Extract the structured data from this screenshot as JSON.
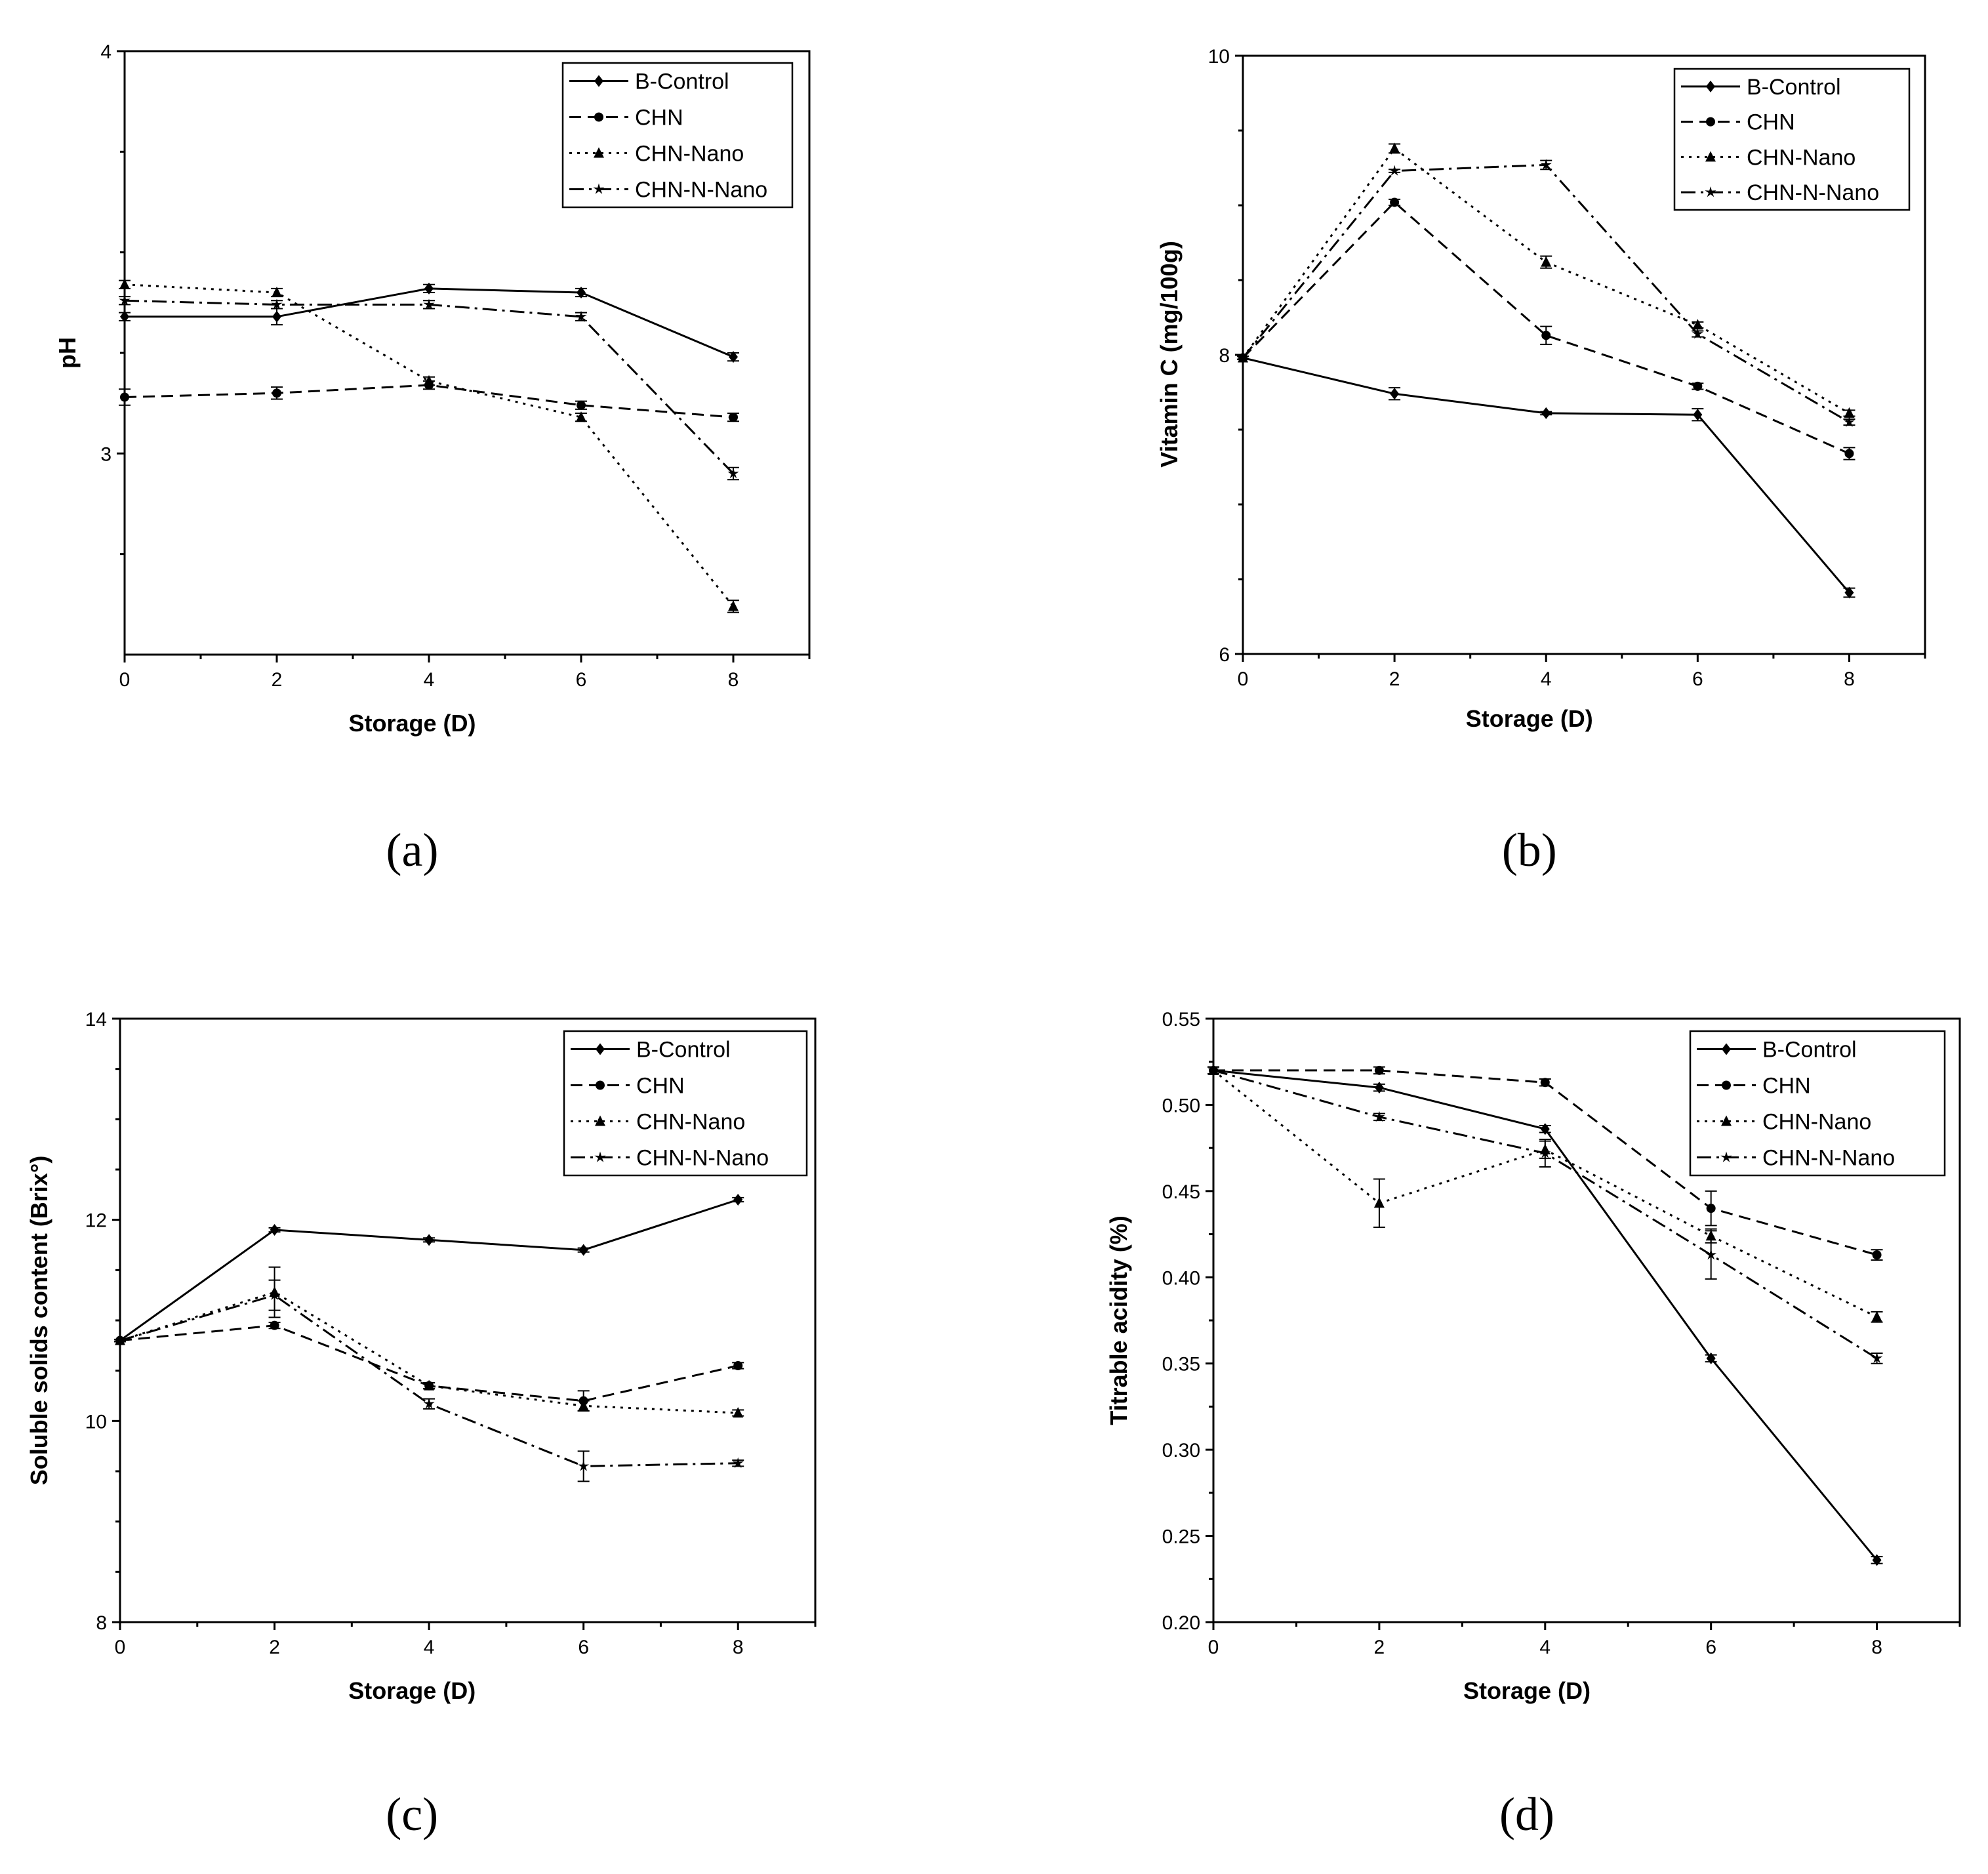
{
  "chart_data": [
    {
      "type": "line",
      "panel_label": "(a)",
      "title": "",
      "xlabel": "Storage (D)",
      "ylabel": "pH",
      "x": [
        0,
        2,
        4,
        6,
        8
      ],
      "xlim": [
        0,
        9
      ],
      "ylim": [
        2.5,
        4
      ],
      "xticks": [
        0,
        2,
        4,
        6,
        8
      ],
      "yticks": [
        3,
        4
      ],
      "legend_position": "top-right",
      "series": [
        {
          "name": "B-Control",
          "style": "solid",
          "marker": "diamond",
          "values": [
            3.34,
            3.34,
            3.41,
            3.4,
            3.24
          ],
          "errors": [
            0.01,
            0.02,
            0.01,
            0.01,
            0.01
          ]
        },
        {
          "name": "CHN",
          "style": "dashed",
          "marker": "circle",
          "values": [
            3.14,
            3.15,
            3.17,
            3.12,
            3.09
          ],
          "errors": [
            0.02,
            0.015,
            0.01,
            0.01,
            0.01
          ]
        },
        {
          "name": "CHN-Nano",
          "style": "dotted",
          "marker": "triangle",
          "values": [
            3.42,
            3.4,
            3.18,
            3.09,
            2.62
          ],
          "errors": [
            0.01,
            0.01,
            0.01,
            0.01,
            0.015
          ]
        },
        {
          "name": "CHN-N-Nano",
          "style": "dashdot",
          "marker": "star",
          "values": [
            3.38,
            3.37,
            3.37,
            3.34,
            2.95
          ],
          "errors": [
            0.01,
            0.01,
            0.01,
            0.01,
            0.015
          ]
        }
      ]
    },
    {
      "type": "line",
      "panel_label": "(b)",
      "title": "",
      "xlabel": "Storage (D)",
      "ylabel": "Vitamin C (mg/100g)",
      "x": [
        0,
        2,
        4,
        6,
        8
      ],
      "xlim": [
        0,
        9
      ],
      "ylim": [
        6,
        10
      ],
      "xticks": [
        0,
        2,
        4,
        6,
        8
      ],
      "yticks": [
        6,
        8,
        10
      ],
      "legend_position": "top-right",
      "series": [
        {
          "name": "B-Control",
          "style": "solid",
          "marker": "diamond",
          "values": [
            7.98,
            7.74,
            7.61,
            7.6,
            6.41
          ],
          "errors": [
            0.01,
            0.04,
            0.01,
            0.04,
            0.03
          ]
        },
        {
          "name": "CHN",
          "style": "dashed",
          "marker": "circle",
          "values": [
            7.98,
            9.02,
            8.13,
            7.79,
            7.34
          ],
          "errors": [
            0.01,
            0.02,
            0.06,
            0.02,
            0.04
          ]
        },
        {
          "name": "CHN-Nano",
          "style": "dotted",
          "marker": "triangle",
          "values": [
            7.98,
            9.38,
            8.62,
            8.2,
            7.61
          ],
          "errors": [
            0.01,
            0.03,
            0.04,
            0.02,
            0.02
          ]
        },
        {
          "name": "CHN-N-Nano",
          "style": "dashdot",
          "marker": "star",
          "values": [
            7.98,
            9.23,
            9.27,
            8.14,
            7.55
          ],
          "errors": [
            0.01,
            0.01,
            0.03,
            0.02,
            0.02
          ]
        }
      ]
    },
    {
      "type": "line",
      "panel_label": "(c)",
      "title": "",
      "xlabel": "Storage (D)",
      "ylabel": "Soluble solids content (Brix°)",
      "x": [
        0,
        2,
        4,
        6,
        8
      ],
      "xlim": [
        0,
        9
      ],
      "ylim": [
        8,
        14
      ],
      "xticks": [
        0,
        2,
        4,
        6,
        8
      ],
      "yticks": [
        8,
        10,
        12,
        14
      ],
      "legend_position": "top-right",
      "series": [
        {
          "name": "B-Control",
          "style": "solid",
          "marker": "diamond",
          "values": [
            10.8,
            11.9,
            11.8,
            11.7,
            12.2
          ],
          "errors": [
            0.01,
            0.02,
            0.02,
            0.02,
            0.02
          ]
        },
        {
          "name": "CHN",
          "style": "dashed",
          "marker": "circle",
          "values": [
            10.8,
            10.95,
            10.35,
            10.2,
            10.55
          ],
          "errors": [
            0.01,
            0.03,
            0.03,
            0.1,
            0.03
          ]
        },
        {
          "name": "CHN-Nano",
          "style": "dotted",
          "marker": "triangle",
          "values": [
            10.8,
            11.28,
            10.35,
            10.15,
            10.08
          ],
          "errors": [
            0.01,
            0.25,
            0.03,
            0.05,
            0.03
          ]
        },
        {
          "name": "CHN-N-Nano",
          "style": "dashdot",
          "marker": "star",
          "values": [
            10.8,
            11.25,
            10.17,
            9.55,
            9.58
          ],
          "errors": [
            0.01,
            0.15,
            0.05,
            0.15,
            0.03
          ]
        }
      ]
    },
    {
      "type": "line",
      "panel_label": "(d)",
      "title": "",
      "xlabel": "Storage (D)",
      "ylabel": "Titrable acidity (%)",
      "x": [
        0,
        2,
        4,
        6,
        8
      ],
      "xlim": [
        0,
        9
      ],
      "ylim": [
        0.2,
        0.55
      ],
      "xticks": [
        0,
        2,
        4,
        6,
        8
      ],
      "yticks": [
        0.2,
        0.25,
        0.3,
        0.35,
        0.4,
        0.45,
        0.5,
        0.55
      ],
      "ytick_labels": [
        "0.20",
        "0.25",
        "0.30",
        "0.35",
        "0.40",
        "0.45",
        "0.50",
        "0.55"
      ],
      "legend_position": "top-right",
      "series": [
        {
          "name": "B-Control",
          "style": "solid",
          "marker": "diamond",
          "values": [
            0.52,
            0.51,
            0.486,
            0.353,
            0.236
          ],
          "errors": [
            0.002,
            0.002,
            0.002,
            0.002,
            0.002
          ]
        },
        {
          "name": "CHN",
          "style": "dashed",
          "marker": "circle",
          "values": [
            0.52,
            0.52,
            0.513,
            0.44,
            0.413
          ],
          "errors": [
            0.002,
            0.002,
            0.002,
            0.01,
            0.003
          ]
        },
        {
          "name": "CHN-Nano",
          "style": "dotted",
          "marker": "triangle",
          "values": [
            0.52,
            0.443,
            0.474,
            0.424,
            0.377
          ],
          "errors": [
            0.002,
            0.014,
            0.005,
            0.004,
            0.003
          ]
        },
        {
          "name": "CHN-N-Nano",
          "style": "dashdot",
          "marker": "star",
          "values": [
            0.52,
            0.493,
            0.472,
            0.413,
            0.353
          ],
          "errors": [
            0.002,
            0.002,
            0.008,
            0.014,
            0.003
          ]
        }
      ]
    }
  ]
}
